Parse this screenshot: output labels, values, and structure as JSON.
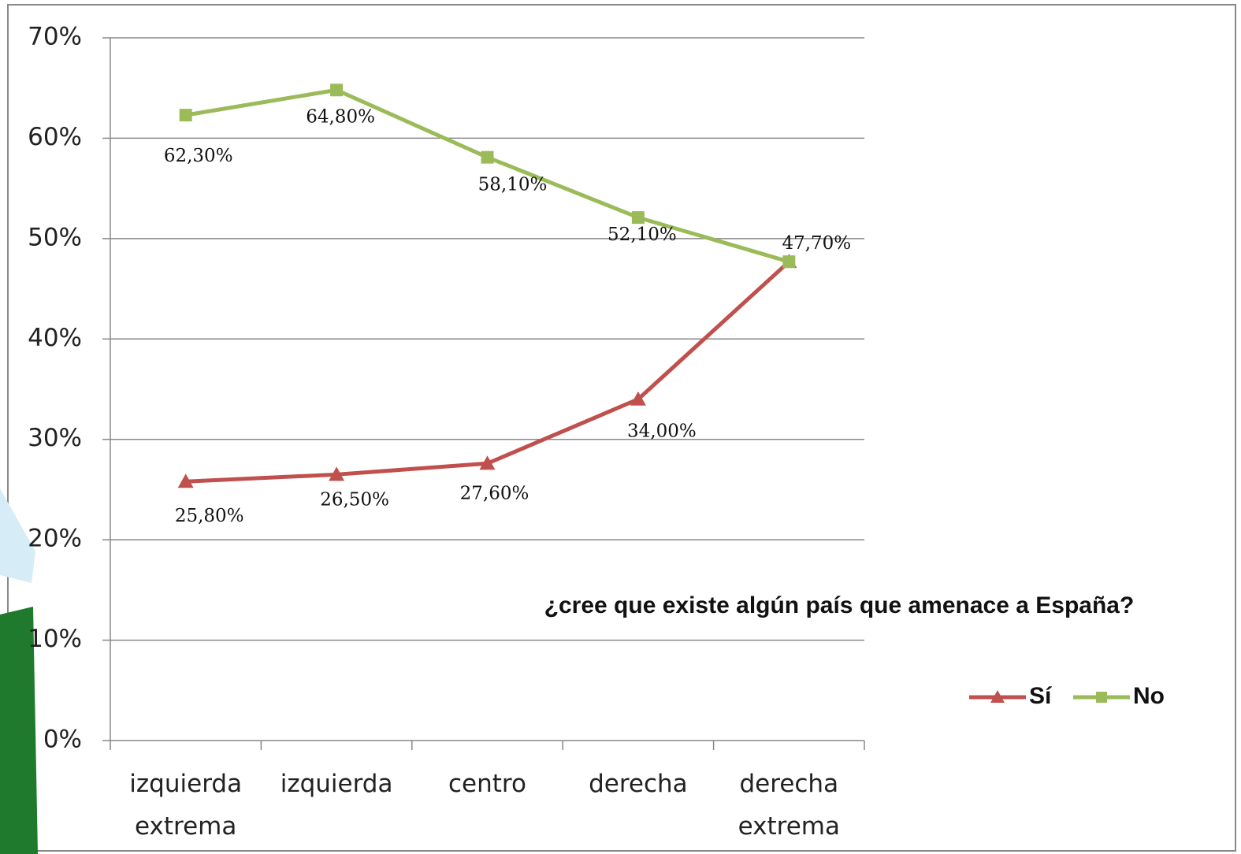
{
  "chart_data": {
    "type": "line",
    "annotation": "¿cree que existe algún país que amenace a España?",
    "categories": [
      "izquierda extrema",
      "izquierda",
      "centro",
      "derecha",
      "derecha extrema"
    ],
    "series": [
      {
        "name": "Sí",
        "color": "#c0504d",
        "marker": "triangle",
        "values": [
          25.8,
          26.5,
          27.6,
          34.0,
          47.7
        ],
        "value_labels": [
          "25,80%",
          "26,50%",
          "27,60%",
          "34,00%",
          null
        ]
      },
      {
        "name": "No",
        "color": "#9bbb59",
        "marker": "square",
        "values": [
          62.3,
          64.8,
          58.1,
          52.1,
          47.7
        ],
        "value_labels": [
          "62,30%",
          "64,80%",
          "58,10%",
          "52,10%",
          "47,70%"
        ]
      }
    ],
    "ylim": [
      0,
      70
    ],
    "yticks": [
      {
        "value": 0,
        "label": "0%"
      },
      {
        "value": 10,
        "label": "10%"
      },
      {
        "value": 20,
        "label": "20%"
      },
      {
        "value": 30,
        "label": "30%"
      },
      {
        "value": 40,
        "label": "40%"
      },
      {
        "value": 50,
        "label": "50%"
      },
      {
        "value": 60,
        "label": "60%"
      },
      {
        "value": 70,
        "label": "70%"
      }
    ],
    "grid": true,
    "legend": "right"
  }
}
